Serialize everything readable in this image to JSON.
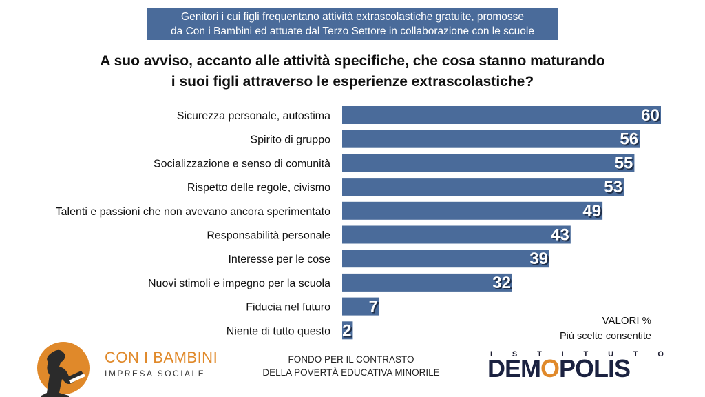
{
  "header": {
    "subtitle_line1": "Genitori i cui figli frequentano attività extrascolastiche gratuite, promosse",
    "subtitle_line2": "da Con i Bambini ed attuate dal Terzo Settore in collaborazione con le scuole",
    "title_line1": "A suo avviso, accanto alle attività specifiche, che cosa stanno maturando",
    "title_line2": "i suoi figli attraverso le esperienze extrascolastiche?"
  },
  "chart_data": {
    "type": "bar",
    "orientation": "horizontal",
    "categories": [
      "Sicurezza personale, autostima",
      "Spirito di gruppo",
      "Socializzazione e senso di comunità",
      "Rispetto delle regole, civismo",
      "Talenti e passioni che non avevano ancora sperimentato",
      "Responsabilità personale",
      "Interesse per le cose",
      "Nuovi stimoli e impegno per la scuola",
      "Fiducia nel futuro",
      "Niente di tutto questo"
    ],
    "values": [
      60,
      56,
      55,
      53,
      49,
      43,
      39,
      32,
      7,
      2
    ],
    "bar_color": "#4a6b9a",
    "grid": false,
    "legend": "none"
  },
  "notes": {
    "valori": "VALORI %",
    "scelte": "Più scelte consentite"
  },
  "footer": {
    "logo_name": "CON I BAMBINI",
    "logo_sub": "IMPRESA SOCIALE",
    "fondo_line1": "FONDO PER IL CONTRASTO",
    "fondo_line2": "DELLA POVERTÀ EDUCATIVA MINORILE",
    "istituto_letters": [
      "I",
      "S",
      "T",
      "I",
      "T",
      "U",
      "T",
      "O"
    ],
    "demopolis_pre": "DEM",
    "demopolis_o": "O",
    "demopolis_post": "POLIS",
    "accent_color": "#e0892a"
  }
}
